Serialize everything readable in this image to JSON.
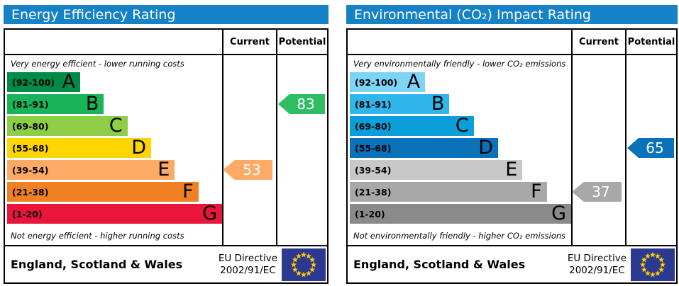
{
  "chart_data": [
    {
      "type": "bar",
      "title": "Energy Efficiency Rating",
      "header_color": "#1581c6",
      "columns": {
        "current": "Current",
        "potential": "Potential"
      },
      "top_label": "Very energy efficient - lower running costs",
      "bottom_label": "Not energy efficient - higher running costs",
      "bands": [
        {
          "letter": "A",
          "range": "(92-100)",
          "color": "#008c47",
          "width_pct": 34
        },
        {
          "letter": "B",
          "range": "(81-91)",
          "color": "#19b459",
          "width_pct": 45
        },
        {
          "letter": "C",
          "range": "(69-80)",
          "color": "#8dce46",
          "width_pct": 56
        },
        {
          "letter": "D",
          "range": "(55-68)",
          "color": "#ffd500",
          "width_pct": 67
        },
        {
          "letter": "E",
          "range": "(39-54)",
          "color": "#fcaa65",
          "width_pct": 78
        },
        {
          "letter": "F",
          "range": "(21-38)",
          "color": "#ef8023",
          "width_pct": 89
        },
        {
          "letter": "G",
          "range": "(1-20)",
          "color": "#e9153b",
          "width_pct": 100
        }
      ],
      "current": {
        "value": 53,
        "band": "E",
        "color": "#fcaa65"
      },
      "potential": {
        "value": 83,
        "band": "B",
        "color": "#2ebd62"
      },
      "footer": {
        "region": "England, Scotland & Wales",
        "directive_line1": "EU Directive",
        "directive_line2": "2002/91/EC"
      }
    },
    {
      "type": "bar",
      "title": "Environmental (CO₂) Impact Rating",
      "header_color": "#1581c6",
      "columns": {
        "current": "Current",
        "potential": "Potential"
      },
      "top_label": "Very environmentally friendly - lower CO₂ emissions",
      "bottom_label": "Not environmentally friendly - higher CO₂ emissions",
      "bands": [
        {
          "letter": "A",
          "range": "(92-100)",
          "color": "#7ed4f4",
          "width_pct": 34
        },
        {
          "letter": "B",
          "range": "(81-91)",
          "color": "#30b6e9",
          "width_pct": 45
        },
        {
          "letter": "C",
          "range": "(69-80)",
          "color": "#0b9fda",
          "width_pct": 56
        },
        {
          "letter": "D",
          "range": "(55-68)",
          "color": "#0b72b9",
          "width_pct": 67
        },
        {
          "letter": "E",
          "range": "(39-54)",
          "color": "#c8c8c8",
          "width_pct": 78
        },
        {
          "letter": "F",
          "range": "(21-38)",
          "color": "#a8a8a8",
          "width_pct": 89
        },
        {
          "letter": "G",
          "range": "(1-20)",
          "color": "#8a8a8a",
          "width_pct": 100
        }
      ],
      "current": {
        "value": 37,
        "band": "F",
        "color": "#a8a8a8"
      },
      "potential": {
        "value": 65,
        "band": "D",
        "color": "#0b72b9"
      },
      "footer": {
        "region": "England, Scotland & Wales",
        "directive_line1": "EU Directive",
        "directive_line2": "2002/91/EC"
      }
    }
  ],
  "eu_flag": {
    "bg": "#2b3990",
    "star_color": "#ffcc00",
    "star_count": 12
  }
}
